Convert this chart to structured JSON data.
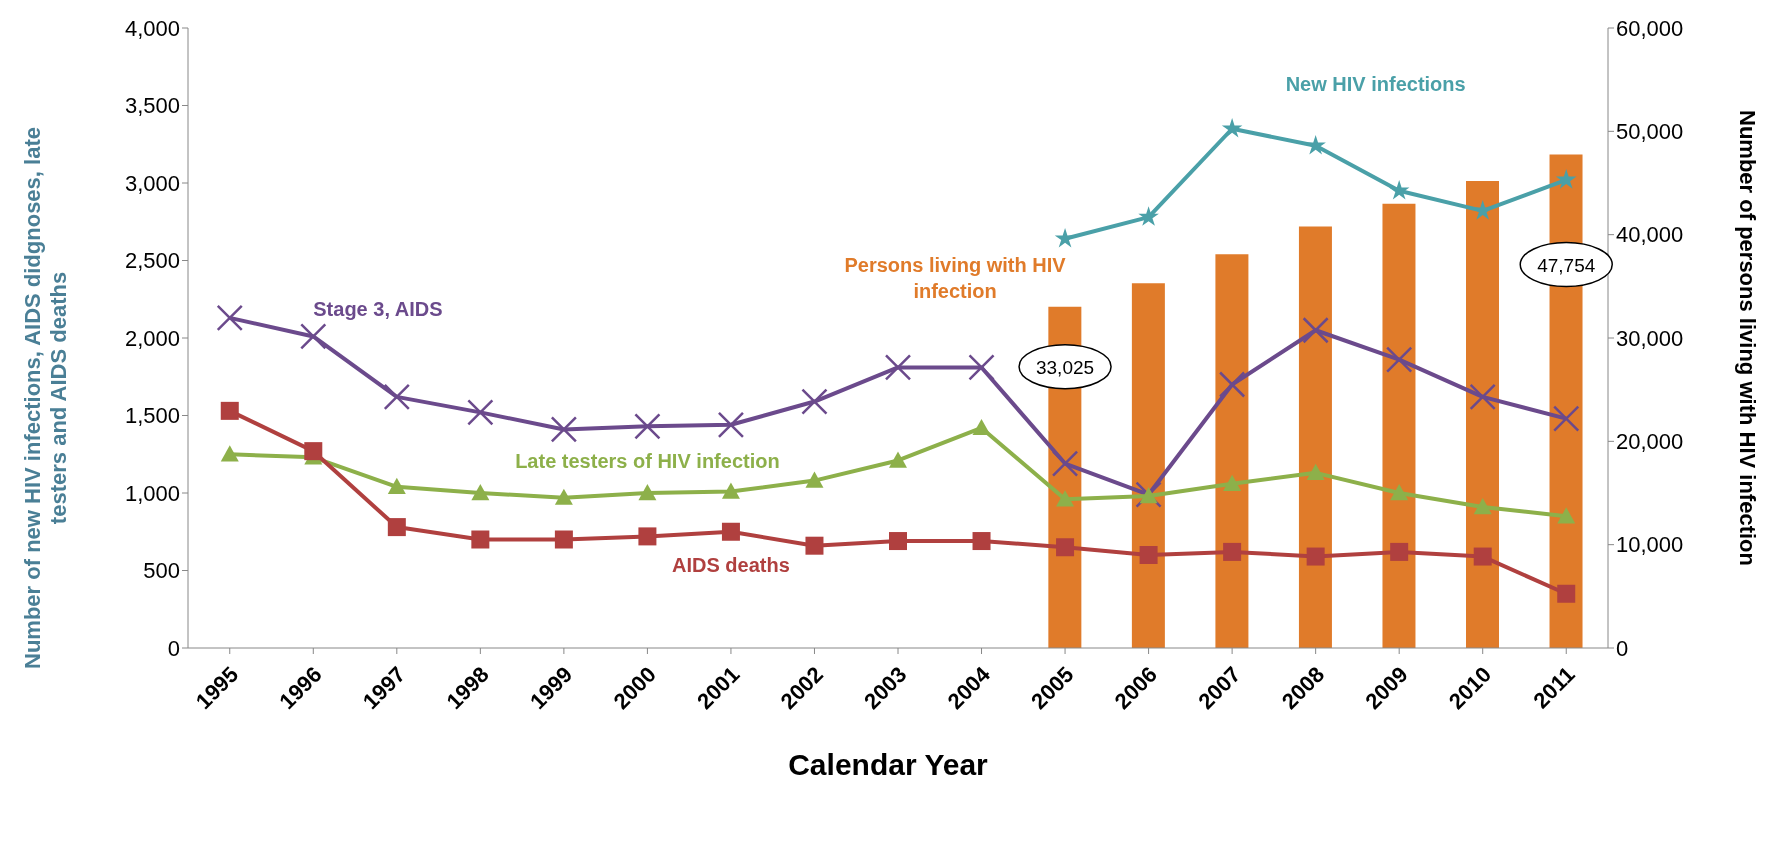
{
  "chart_data": {
    "type": "line",
    "xlabel": "Calendar Year",
    "ylabel": "Number of new HIV infections, AIDS didgnoses, late testers and AIDS deaths",
    "y2label": "Number of persons living with HIV infection",
    "categories": [
      "1995",
      "1996",
      "1997",
      "1998",
      "1999",
      "2000",
      "2001",
      "2002",
      "2003",
      "2004",
      "2005",
      "2006",
      "2007",
      "2008",
      "2009",
      "2010",
      "2011"
    ],
    "series": [
      {
        "name": "Persons living with HIV infection",
        "type": "bar",
        "axis": "y2",
        "color": "#e07b2a",
        "values": [
          null,
          null,
          null,
          null,
          null,
          null,
          null,
          null,
          null,
          null,
          33025,
          35300,
          38100,
          40800,
          43000,
          45200,
          47754
        ],
        "value_labels": [
          null,
          null,
          null,
          null,
          null,
          null,
          null,
          null,
          null,
          null,
          "33,025",
          null,
          null,
          null,
          null,
          null,
          "47,754"
        ]
      },
      {
        "name": "New HIV infections",
        "color": "#4aa0a8",
        "marker": "star",
        "values": [
          null,
          null,
          null,
          null,
          null,
          null,
          null,
          null,
          null,
          null,
          2640,
          2780,
          3350,
          3240,
          2950,
          2820,
          3020
        ]
      },
      {
        "name": "Stage 3, AIDS",
        "color": "#6b4a8c",
        "marker": "cross",
        "values": [
          2130,
          2010,
          1620,
          1520,
          1410,
          1430,
          1440,
          1590,
          1810,
          1810,
          1190,
          990,
          1700,
          2050,
          1860,
          1620,
          1480
        ]
      },
      {
        "name": "Late testers of HIV infection",
        "color": "#8db04a",
        "marker": "triangle",
        "values": [
          1250,
          1230,
          1040,
          1000,
          970,
          1000,
          1010,
          1080,
          1210,
          1420,
          960,
          980,
          1060,
          1130,
          1000,
          910,
          850
        ]
      },
      {
        "name": "AIDS deaths",
        "color": "#b0403f",
        "marker": "square",
        "values": [
          1530,
          1270,
          780,
          700,
          700,
          720,
          750,
          660,
          690,
          690,
          650,
          600,
          620,
          590,
          620,
          590,
          350
        ]
      }
    ],
    "ylim": [
      0,
      4000
    ],
    "yticks": [
      0,
      500,
      {
        "value": 1000,
        "label": "1,000"
      },
      {
        "value": 1500,
        "label": "1,500"
      },
      {
        "value": 2000,
        "label": "2,000"
      },
      {
        "value": 2500,
        "label": "2,500"
      },
      {
        "value": 3000,
        "label": "3,000"
      },
      {
        "value": 3500,
        "label": "3,500"
      },
      {
        "value": 4000,
        "label": "4,000"
      }
    ],
    "y2lim": [
      0,
      60000
    ],
    "y2ticks": [
      0,
      {
        "value": 10000,
        "label": "10,000"
      },
      {
        "value": 20000,
        "label": "20,000"
      },
      {
        "value": 30000,
        "label": "30,000"
      },
      {
        "value": 40000,
        "label": "40,000"
      },
      {
        "value": 50000,
        "label": "50,000"
      },
      {
        "value": 60000,
        "label": "60,000"
      }
    ]
  }
}
